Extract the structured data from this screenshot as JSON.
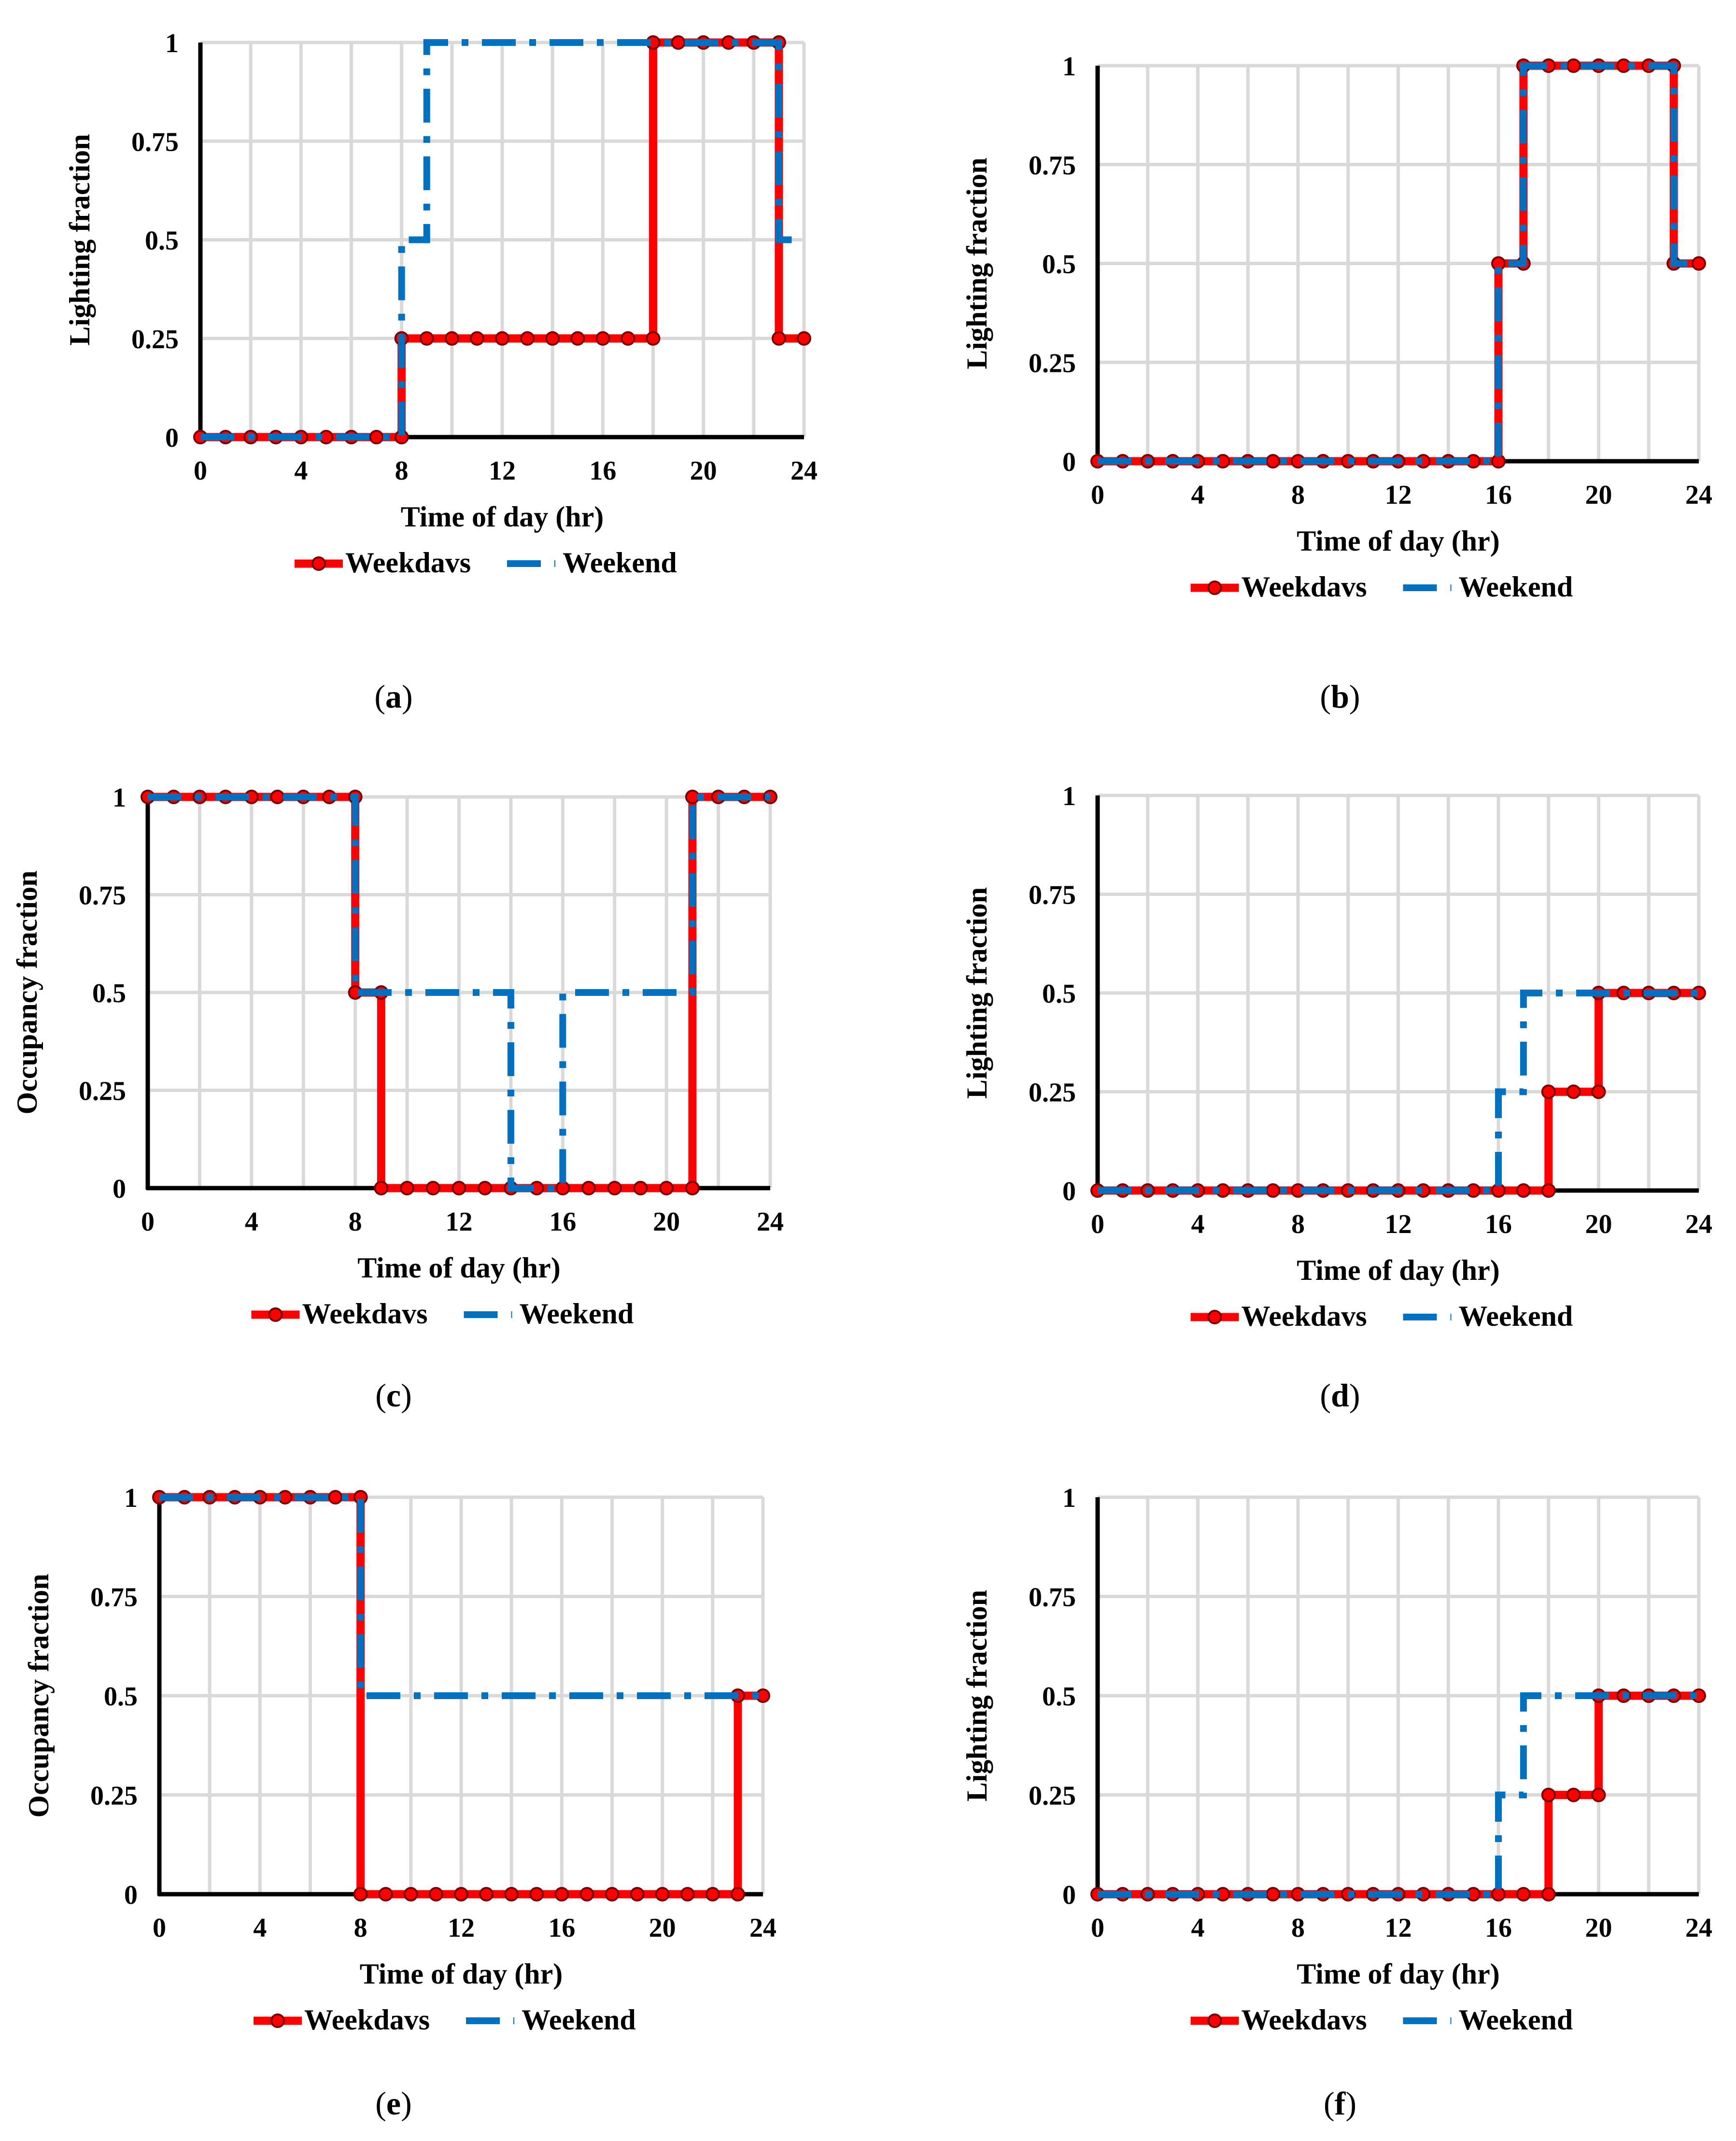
{
  "legend": {
    "weekdays": "Weekdavs",
    "weekend": "Weekend"
  },
  "colors": {
    "weekdays": "#ff0000",
    "weekend": "#0070c0",
    "weekdays_marker_edge": "#7a0000",
    "grid": "#d9d9d9",
    "axis": "#000000"
  },
  "chart_data": [
    {
      "id": "a",
      "caption_letter": "a",
      "type": "line",
      "title": "",
      "xlabel": "Time of  day (hr)",
      "ylabel": "Lighting fraction",
      "xlim": [
        0,
        24
      ],
      "ylim": [
        0,
        1
      ],
      "xticks": [
        0,
        4,
        8,
        12,
        16,
        20,
        24
      ],
      "yticks": [
        0,
        0.25,
        0.5,
        0.75,
        1
      ],
      "ytick_labels": [
        "0",
        "0.25",
        "0.5",
        "0.75",
        "1"
      ],
      "grid": true,
      "legend_position": "bottom",
      "series": [
        {
          "name": "Weekdavs",
          "style": "solid-markers",
          "x": [
            0,
            1,
            2,
            3,
            4,
            5,
            6,
            7,
            8,
            8,
            9,
            10,
            11,
            12,
            13,
            14,
            15,
            16,
            17,
            18,
            18,
            19,
            20,
            21,
            22,
            23,
            23,
            24
          ],
          "y": [
            0,
            0,
            0,
            0,
            0,
            0,
            0,
            0,
            0,
            0.25,
            0.25,
            0.25,
            0.25,
            0.25,
            0.25,
            0.25,
            0.25,
            0.25,
            0.25,
            0.25,
            1,
            1,
            1,
            1,
            1,
            1,
            0.25,
            0.25
          ]
        },
        {
          "name": "Weekend",
          "style": "dash-dot",
          "x": [
            0,
            8,
            8,
            9,
            9,
            23,
            23,
            24
          ],
          "y": [
            0,
            0,
            0.5,
            0.5,
            1,
            1,
            0.5,
            0.5
          ]
        }
      ]
    },
    {
      "id": "b",
      "caption_letter": "b",
      "type": "line",
      "title": "",
      "xlabel": "Time of  day (hr)",
      "ylabel": "Lighting fraction",
      "xlim": [
        0,
        24
      ],
      "ylim": [
        0,
        1
      ],
      "xticks": [
        0,
        4,
        8,
        12,
        16,
        20,
        24
      ],
      "yticks": [
        0,
        0.25,
        0.5,
        0.75,
        1
      ],
      "ytick_labels": [
        "0",
        "0.25",
        "0.5",
        "0.75",
        "1"
      ],
      "grid": true,
      "legend_position": "bottom",
      "series": [
        {
          "name": "Weekdavs",
          "style": "solid-markers",
          "x": [
            0,
            1,
            2,
            3,
            4,
            5,
            6,
            7,
            8,
            9,
            10,
            11,
            12,
            13,
            14,
            15,
            16,
            16,
            17,
            17,
            18,
            19,
            20,
            21,
            22,
            23,
            23,
            24
          ],
          "y": [
            0,
            0,
            0,
            0,
            0,
            0,
            0,
            0,
            0,
            0,
            0,
            0,
            0,
            0,
            0,
            0,
            0,
            0.5,
            0.5,
            1,
            1,
            1,
            1,
            1,
            1,
            1,
            0.5,
            0.5
          ]
        },
        {
          "name": "Weekend",
          "style": "dash-dot",
          "x": [
            0,
            16,
            16,
            17,
            17,
            23,
            23,
            24
          ],
          "y": [
            0,
            0,
            0.5,
            0.5,
            1,
            1,
            0.5,
            0.5
          ]
        }
      ]
    },
    {
      "id": "c",
      "caption_letter": "c",
      "type": "line",
      "title": "",
      "xlabel": "Time of  day (hr)",
      "ylabel": "Occupancy fraction",
      "xlim": [
        0,
        24
      ],
      "ylim": [
        0,
        1
      ],
      "xticks": [
        0,
        4,
        8,
        12,
        16,
        20,
        24
      ],
      "yticks": [
        0,
        0.25,
        0.5,
        0.75,
        1
      ],
      "ytick_labels": [
        "0",
        "0.25",
        "0.5",
        "0.75",
        "1"
      ],
      "grid": true,
      "legend_position": "bottom",
      "series": [
        {
          "name": "Weekdavs",
          "style": "solid-markers",
          "x": [
            0,
            1,
            2,
            3,
            4,
            5,
            6,
            7,
            8,
            8,
            9,
            9,
            10,
            11,
            12,
            13,
            14,
            15,
            16,
            17,
            18,
            19,
            20,
            21,
            21,
            22,
            23,
            24
          ],
          "y": [
            1,
            1,
            1,
            1,
            1,
            1,
            1,
            1,
            1,
            0.5,
            0.5,
            0,
            0,
            0,
            0,
            0,
            0,
            0,
            0,
            0,
            0,
            0,
            0,
            0,
            1,
            1,
            1,
            1
          ]
        },
        {
          "name": "Weekend",
          "style": "dash-dot",
          "x": [
            0,
            8,
            8,
            14,
            14,
            16,
            16,
            21,
            21,
            24
          ],
          "y": [
            1,
            1,
            0.5,
            0.5,
            0,
            0,
            0.5,
            0.5,
            1,
            1
          ]
        }
      ]
    },
    {
      "id": "d",
      "caption_letter": "d",
      "type": "line",
      "title": "",
      "xlabel": "Time of  day (hr)",
      "ylabel": "Lighting fraction",
      "xlim": [
        0,
        24
      ],
      "ylim": [
        0,
        1
      ],
      "xticks": [
        0,
        4,
        8,
        12,
        16,
        20,
        24
      ],
      "yticks": [
        0,
        0.25,
        0.5,
        0.75,
        1
      ],
      "ytick_labels": [
        "0",
        "0.25",
        "0.5",
        "0.75",
        "1"
      ],
      "grid": true,
      "legend_position": "bottom",
      "series": [
        {
          "name": "Weekdavs",
          "style": "solid-markers",
          "x": [
            0,
            1,
            2,
            3,
            4,
            5,
            6,
            7,
            8,
            9,
            10,
            11,
            12,
            13,
            14,
            15,
            16,
            17,
            18,
            18,
            19,
            20,
            20,
            21,
            22,
            23,
            24
          ],
          "y": [
            0,
            0,
            0,
            0,
            0,
            0,
            0,
            0,
            0,
            0,
            0,
            0,
            0,
            0,
            0,
            0,
            0,
            0,
            0,
            0.25,
            0.25,
            0.25,
            0.5,
            0.5,
            0.5,
            0.5,
            0.5
          ]
        },
        {
          "name": "Weekend",
          "style": "dash-dot",
          "x": [
            0,
            16,
            16,
            17,
            17,
            24
          ],
          "y": [
            0,
            0,
            0.25,
            0.25,
            0.5,
            0.5
          ]
        }
      ]
    },
    {
      "id": "e",
      "caption_letter": "e",
      "type": "line",
      "title": "",
      "xlabel": "Time of  day (hr)",
      "ylabel": "Occupancy fraction",
      "xlim": [
        0,
        24
      ],
      "ylim": [
        0,
        1
      ],
      "xticks": [
        0,
        4,
        8,
        12,
        16,
        20,
        24
      ],
      "yticks": [
        0,
        0.25,
        0.5,
        0.75,
        1
      ],
      "ytick_labels": [
        "0",
        "0.25",
        "0.5",
        "0.75",
        "1"
      ],
      "grid": true,
      "legend_position": "bottom",
      "series": [
        {
          "name": "Weekdavs",
          "style": "solid-markers",
          "x": [
            0,
            1,
            2,
            3,
            4,
            5,
            6,
            7,
            8,
            8,
            9,
            10,
            11,
            12,
            13,
            14,
            15,
            16,
            17,
            18,
            19,
            20,
            21,
            22,
            23,
            23,
            24
          ],
          "y": [
            1,
            1,
            1,
            1,
            1,
            1,
            1,
            1,
            1,
            0,
            0,
            0,
            0,
            0,
            0,
            0,
            0,
            0,
            0,
            0,
            0,
            0,
            0,
            0,
            0,
            0.5,
            0.5
          ]
        },
        {
          "name": "Weekend",
          "style": "dash-dot",
          "x": [
            0,
            8,
            8,
            24
          ],
          "y": [
            1,
            1,
            0.5,
            0.5
          ]
        }
      ]
    },
    {
      "id": "f",
      "caption_letter": "f",
      "type": "line",
      "title": "",
      "xlabel": "Time of  day (hr)",
      "ylabel": "Lighting fraction",
      "xlim": [
        0,
        24
      ],
      "ylim": [
        0,
        1
      ],
      "xticks": [
        0,
        4,
        8,
        12,
        16,
        20,
        24
      ],
      "yticks": [
        0,
        0.25,
        0.5,
        0.75,
        1
      ],
      "ytick_labels": [
        "0",
        "0.25",
        "0.5",
        "0.75",
        "1"
      ],
      "grid": true,
      "legend_position": "bottom",
      "series": [
        {
          "name": "Weekdavs",
          "style": "solid-markers",
          "x": [
            0,
            1,
            2,
            3,
            4,
            5,
            6,
            7,
            8,
            9,
            10,
            11,
            12,
            13,
            14,
            15,
            16,
            17,
            18,
            18,
            19,
            20,
            20,
            21,
            22,
            23,
            24
          ],
          "y": [
            0,
            0,
            0,
            0,
            0,
            0,
            0,
            0,
            0,
            0,
            0,
            0,
            0,
            0,
            0,
            0,
            0,
            0,
            0,
            0.25,
            0.25,
            0.25,
            0.5,
            0.5,
            0.5,
            0.5,
            0.5
          ]
        },
        {
          "name": "Weekend",
          "style": "dash-dot",
          "x": [
            0,
            16,
            16,
            17,
            17,
            24
          ],
          "y": [
            0,
            0,
            0.25,
            0.25,
            0.5,
            0.5
          ]
        }
      ]
    }
  ]
}
